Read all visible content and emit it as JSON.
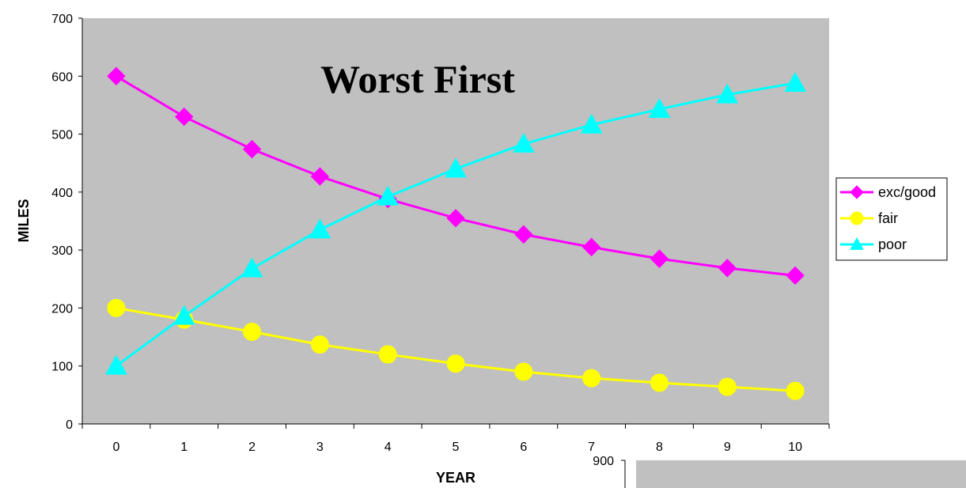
{
  "chart_data": [
    {
      "type": "line",
      "title": "Worst First",
      "xlabel": "YEAR",
      "ylabel": "MILES",
      "categories": [
        "0",
        "1",
        "2",
        "3",
        "4",
        "5",
        "6",
        "7",
        "8",
        "9",
        "10"
      ],
      "y_ticks": [
        "0",
        "100",
        "200",
        "300",
        "400",
        "500",
        "600",
        "700"
      ],
      "ylim": [
        0,
        700
      ],
      "grid": false,
      "legend": "right",
      "plot_background": "#c0c0c0",
      "series": [
        {
          "name": "exc/good",
          "color": "#ff00ff",
          "marker": "diamond",
          "values": [
            600,
            530,
            474,
            427,
            388,
            355,
            327,
            305,
            285,
            269,
            256
          ]
        },
        {
          "name": "fair",
          "color": "#ffff00",
          "marker": "circle",
          "values": [
            200,
            180,
            159,
            137,
            120,
            104,
            90,
            79,
            71,
            64,
            57
          ]
        },
        {
          "name": "poor",
          "color": "#00ffff",
          "marker": "triangle",
          "values": [
            100,
            186,
            268,
            335,
            392,
            440,
            483,
            516,
            543,
            568,
            588
          ]
        }
      ]
    },
    {
      "type": "line",
      "partial": true,
      "y_ticks": [
        "900"
      ],
      "plot_background": "#c0c0c0"
    }
  ]
}
